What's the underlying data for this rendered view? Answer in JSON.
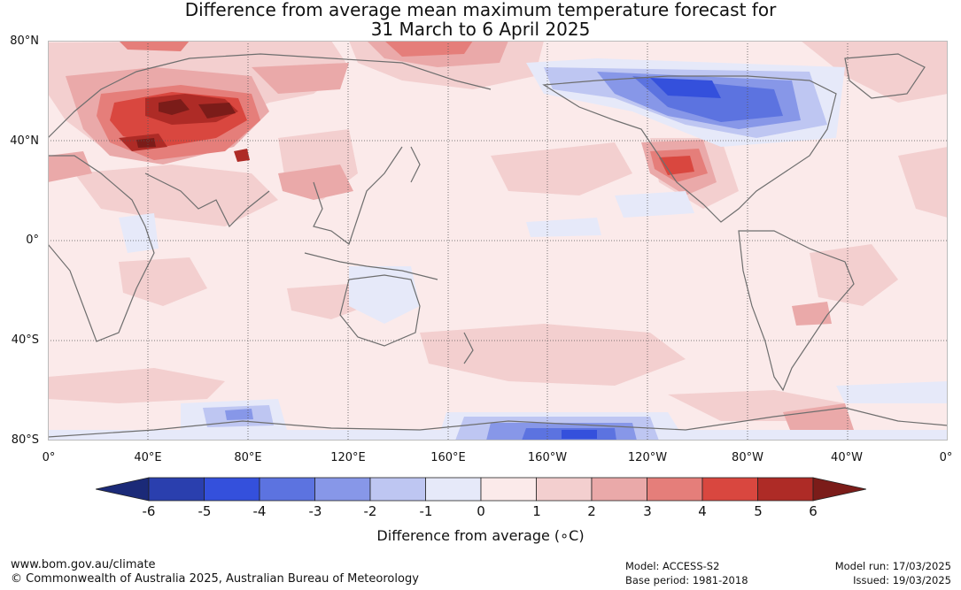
{
  "title": {
    "line1": "Difference from average mean maximum temperature forecast for",
    "line2": "31 March to 6 April 2025"
  },
  "map": {
    "lat_labels": [
      "80°N",
      "40°N",
      "0°",
      "40°S",
      "80°S"
    ],
    "lon_labels": [
      "0°",
      "40°E",
      "80°E",
      "120°E",
      "160°E",
      "160°W",
      "120°W",
      "80°W",
      "40°W",
      "0°"
    ],
    "regions": [
      "Central Asia / Kazakhstan strong warm anomaly",
      "Iran / Afghanistan warm anomaly",
      "Northern Canada / Hudson Bay cold anomaly",
      "Southwestern United States warm anomaly",
      "Antarctic coast cold anomaly south of Pacific",
      "Antarctic coast cold anomaly south of Indian Ocean"
    ]
  },
  "colorbar": {
    "label": "Difference from average (∘C)",
    "ticks": [
      "-6",
      "-5",
      "-4",
      "-3",
      "-2",
      "-1",
      "0",
      "1",
      "2",
      "3",
      "4",
      "5",
      "6"
    ],
    "colors": {
      "lt_-6": "#1b2a78",
      "-6_-5": "#2a3fae",
      "-5_-4": "#3450dc",
      "-4_-3": "#5c73e0",
      "-3_-2": "#8797e8",
      "-2_-1": "#bec6f2",
      "-1_0": "#e6e9f9",
      "0_1": "#fbeaea",
      "1_2": "#f3cfcf",
      "2_3": "#eaa9a9",
      "3_4": "#e57e7a",
      "4_5": "#d9473f",
      "5_6": "#ae2b26",
      "gt_6": "#7b1c19"
    }
  },
  "footer": {
    "website": "www.bom.gov.au/climate",
    "copyright": "© Commonwealth of Australia 2025, Australian Bureau of Meteorology",
    "model": "Model: ACCESS-S2",
    "base_period": "Base period: 1981-2018",
    "model_run": "Model run: 17/03/2025",
    "issued": "Issued: 19/03/2025"
  }
}
